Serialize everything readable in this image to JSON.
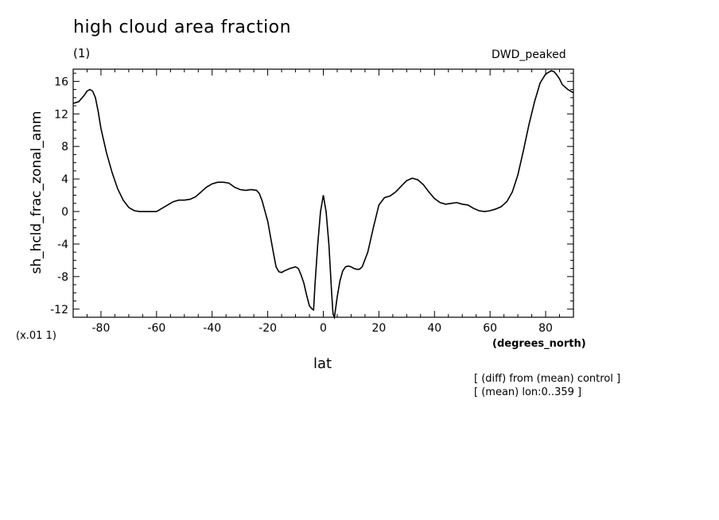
{
  "chart_data": {
    "type": "line",
    "title": "high cloud area fraction",
    "units": "(1)",
    "experiment": "DWD_peaked",
    "ylabel": "sh_hcld_frac_zonal_anm",
    "xlabel": "lat",
    "xunits": "(degrees_north)",
    "yscale_note": "(x.01 1)",
    "notes": [
      "[ (diff) from (mean) control ]",
      "[ (mean) lon:0..359 ]"
    ],
    "xlim": [
      -90,
      90
    ],
    "ylim": [
      -13,
      17.5
    ],
    "xticks": [
      -80,
      -60,
      -40,
      -20,
      0,
      20,
      40,
      60,
      80
    ],
    "xtick_labels": [
      "-80",
      "-60",
      "-40",
      "-20",
      "0",
      "20",
      "40",
      "60",
      "80"
    ],
    "yticks": [
      -12,
      -8,
      -4,
      0,
      4,
      8,
      12,
      16
    ],
    "ytick_labels": [
      "-12",
      "-8",
      "-4",
      "0",
      "4",
      "8",
      "12",
      "16"
    ],
    "grid": false,
    "series": [
      {
        "x": [
          -90,
          -88,
          -86,
          -85,
          -84,
          -83,
          -82,
          -81,
          -80,
          -78,
          -76,
          -74,
          -72,
          -70,
          -68,
          -66,
          -64,
          -62,
          -60,
          -58,
          -56,
          -54,
          -52,
          -50,
          -48,
          -46,
          -44,
          -42,
          -40,
          -38,
          -36,
          -34,
          -32,
          -30,
          -28,
          -26,
          -24,
          -23,
          -22,
          -20,
          -18,
          -17,
          -16,
          -15,
          -14,
          -12,
          -10,
          -9,
          -8,
          -7,
          -6,
          -5,
          -4,
          -3.5,
          -3,
          -2,
          -1,
          0,
          1,
          2,
          3,
          3.5,
          4,
          5,
          6,
          7,
          8,
          9,
          10,
          11,
          12,
          13,
          14,
          16,
          18,
          20,
          22,
          24,
          26,
          28,
          30,
          32,
          34,
          36,
          38,
          40,
          42,
          44,
          46,
          48,
          50,
          52,
          54,
          56,
          58,
          60,
          62,
          64,
          66,
          68,
          70,
          72,
          74,
          76,
          78,
          80,
          82,
          83,
          84,
          85,
          86,
          88,
          90
        ],
        "y": [
          13.3,
          13.5,
          14.3,
          14.8,
          15.0,
          14.8,
          14.0,
          12.3,
          10.2,
          7.2,
          4.8,
          2.8,
          1.4,
          0.5,
          0.1,
          0.0,
          0.0,
          0.0,
          0.0,
          0.4,
          0.8,
          1.2,
          1.4,
          1.4,
          1.5,
          1.8,
          2.4,
          3.0,
          3.4,
          3.6,
          3.6,
          3.5,
          3.0,
          2.7,
          2.6,
          2.7,
          2.6,
          2.2,
          1.3,
          -1.2,
          -5.0,
          -6.8,
          -7.4,
          -7.5,
          -7.3,
          -7.0,
          -6.8,
          -7.0,
          -7.8,
          -8.8,
          -10.3,
          -11.6,
          -12.0,
          -12.1,
          -9.0,
          -4.0,
          0.0,
          2.0,
          0.0,
          -4.0,
          -10.0,
          -12.6,
          -13.0,
          -10.5,
          -8.5,
          -7.3,
          -6.8,
          -6.7,
          -6.8,
          -7.0,
          -7.1,
          -7.1,
          -6.8,
          -5.0,
          -2.0,
          0.8,
          1.7,
          1.9,
          2.4,
          3.1,
          3.8,
          4.1,
          3.9,
          3.3,
          2.4,
          1.6,
          1.1,
          0.9,
          1.0,
          1.1,
          0.9,
          0.8,
          0.4,
          0.1,
          0.0,
          0.1,
          0.3,
          0.6,
          1.2,
          2.4,
          4.5,
          7.5,
          10.7,
          13.5,
          15.8,
          16.9,
          17.3,
          17.2,
          16.8,
          16.3,
          15.6,
          15.0,
          14.6
        ]
      }
    ]
  }
}
